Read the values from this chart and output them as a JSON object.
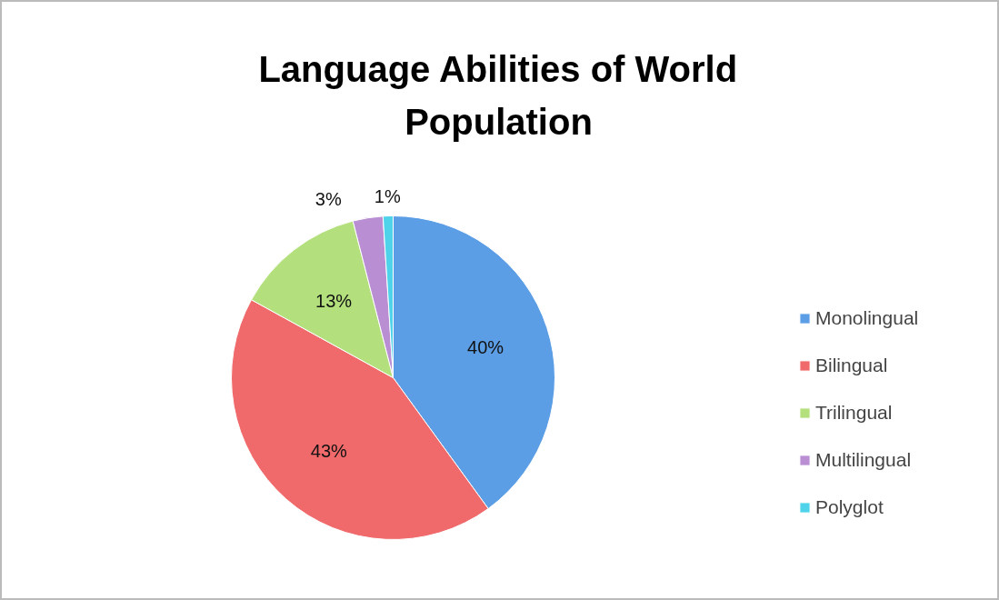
{
  "chart_data": {
    "type": "pie",
    "title": "Language Abilities of World Population",
    "categories": [
      "Monolingual",
      "Bilingual",
      "Trilingual",
      "Multilingual",
      "Polyglot"
    ],
    "values": [
      40,
      43,
      13,
      3,
      1
    ],
    "colors": [
      "#5b9ee6",
      "#f06a6c",
      "#b3e07c",
      "#b98ed3",
      "#4fd3ea"
    ],
    "value_labels": [
      "40%",
      "43%",
      "13%",
      "3%",
      "1%"
    ],
    "legend": "right"
  }
}
